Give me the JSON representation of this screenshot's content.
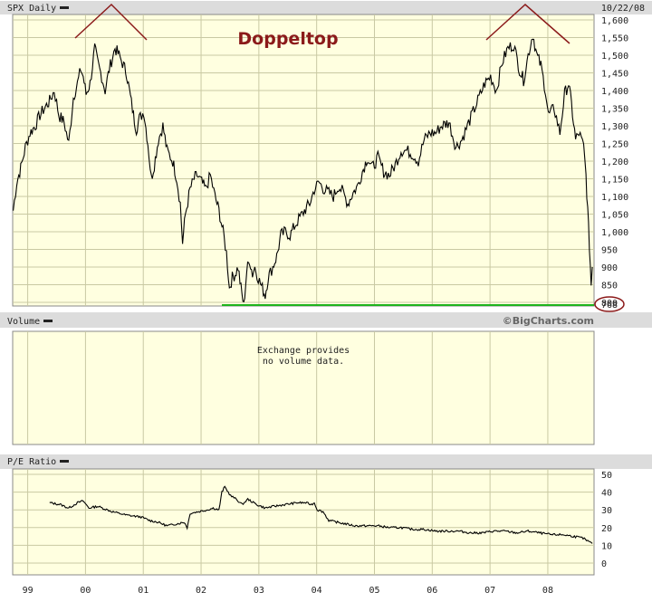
{
  "colors": {
    "background": "#ffffff",
    "panel_bg": "#ffffe0",
    "grid": "#c9c9a3",
    "bar": "#dcdcdc",
    "price_line": "#000000",
    "pe_line": "#000000",
    "annotation": "#8b1a1a",
    "support_line": "#1db31d"
  },
  "header": {
    "symbol_label": "SPX Daily",
    "date": "10/22/08"
  },
  "annotation": {
    "title": "Doppeltop",
    "marked_value": "768"
  },
  "watermark": "©BigCharts.com",
  "volume_panel": {
    "label": "Volume",
    "message_line1": "Exchange provides",
    "message_line2": "no volume data."
  },
  "pe_panel": {
    "label": "P/E Ratio"
  },
  "chart_data": [
    {
      "type": "line",
      "name": "price",
      "x_ticks": [
        "99",
        "00",
        "01",
        "02",
        "03",
        "04",
        "05",
        "06",
        "07",
        "08"
      ],
      "y_ticks": [
        "1,600",
        "1,550",
        "1,500",
        "1,450",
        "1,400",
        "1,350",
        "1,300",
        "1,250",
        "1,200",
        "1,150",
        "1,100",
        "1,050",
        "1,000",
        "950",
        "900",
        "850",
        "800"
      ],
      "ylim": [
        768,
        1600
      ],
      "support_level": 768,
      "series": [
        {
          "points": [
            [
              1998.79,
              1060
            ],
            [
              1998.85,
              1140
            ],
            [
              1998.92,
              1180
            ],
            [
              1999.0,
              1240
            ],
            [
              1999.08,
              1280
            ],
            [
              1999.17,
              1300
            ],
            [
              1999.25,
              1330
            ],
            [
              1999.33,
              1350
            ],
            [
              1999.42,
              1370
            ],
            [
              1999.5,
              1400
            ],
            [
              1999.58,
              1330
            ],
            [
              1999.67,
              1310
            ],
            [
              1999.75,
              1250
            ],
            [
              1999.83,
              1380
            ],
            [
              1999.9,
              1420
            ],
            [
              1999.96,
              1460
            ],
            [
              2000.0,
              1440
            ],
            [
              2000.05,
              1390
            ],
            [
              2000.12,
              1420
            ],
            [
              2000.2,
              1520
            ],
            [
              2000.25,
              1480
            ],
            [
              2000.32,
              1440
            ],
            [
              2000.38,
              1400
            ],
            [
              2000.45,
              1460
            ],
            [
              2000.55,
              1520
            ],
            [
              2000.62,
              1500
            ],
            [
              2000.7,
              1470
            ],
            [
              2000.75,
              1450
            ],
            [
              2000.8,
              1400
            ],
            [
              2000.87,
              1330
            ],
            [
              2000.92,
              1290
            ],
            [
              2000.97,
              1320
            ],
            [
              2001.05,
              1340
            ],
            [
              2001.12,
              1250
            ],
            [
              2001.18,
              1150
            ],
            [
              2001.23,
              1190
            ],
            [
              2001.3,
              1260
            ],
            [
              2001.38,
              1300
            ],
            [
              2001.45,
              1230
            ],
            [
              2001.55,
              1200
            ],
            [
              2001.62,
              1150
            ],
            [
              2001.68,
              1080
            ],
            [
              2001.72,
              970
            ],
            [
              2001.77,
              1050
            ],
            [
              2001.85,
              1120
            ],
            [
              2001.92,
              1150
            ],
            [
              2001.97,
              1160
            ],
            [
              2002.05,
              1140
            ],
            [
              2002.12,
              1120
            ],
            [
              2002.2,
              1160
            ],
            [
              2002.28,
              1100
            ],
            [
              2002.35,
              1060
            ],
            [
              2002.42,
              1000
            ],
            [
              2002.48,
              940
            ],
            [
              2002.53,
              840
            ],
            [
              2002.58,
              870
            ],
            [
              2002.63,
              880
            ],
            [
              2002.68,
              900
            ],
            [
              2002.73,
              840
            ],
            [
              2002.78,
              790
            ],
            [
              2002.83,
              890
            ],
            [
              2002.88,
              920
            ],
            [
              2002.93,
              880
            ],
            [
              2002.97,
              900
            ],
            [
              2003.05,
              860
            ],
            [
              2003.1,
              840
            ],
            [
              2003.15,
              820
            ],
            [
              2003.2,
              870
            ],
            [
              2003.28,
              900
            ],
            [
              2003.35,
              930
            ],
            [
              2003.42,
              990
            ],
            [
              2003.5,
              1000
            ],
            [
              2003.58,
              990
            ],
            [
              2003.67,
              1020
            ],
            [
              2003.75,
              1040
            ],
            [
              2003.83,
              1060
            ],
            [
              2003.92,
              1080
            ],
            [
              2004.0,
              1120
            ],
            [
              2004.08,
              1140
            ],
            [
              2004.17,
              1120
            ],
            [
              2004.25,
              1110
            ],
            [
              2004.33,
              1100
            ],
            [
              2004.42,
              1130
            ],
            [
              2004.5,
              1110
            ],
            [
              2004.58,
              1080
            ],
            [
              2004.67,
              1110
            ],
            [
              2004.75,
              1130
            ],
            [
              2004.83,
              1170
            ],
            [
              2004.92,
              1210
            ],
            [
              2005.0,
              1180
            ],
            [
              2005.1,
              1210
            ],
            [
              2005.2,
              1170
            ],
            [
              2005.3,
              1160
            ],
            [
              2005.4,
              1190
            ],
            [
              2005.5,
              1230
            ],
            [
              2005.6,
              1230
            ],
            [
              2005.7,
              1220
            ],
            [
              2005.8,
              1200
            ],
            [
              2005.9,
              1260
            ],
            [
              2006.0,
              1280
            ],
            [
              2006.1,
              1280
            ],
            [
              2006.2,
              1300
            ],
            [
              2006.33,
              1310
            ],
            [
              2006.45,
              1240
            ],
            [
              2006.55,
              1260
            ],
            [
              2006.65,
              1300
            ],
            [
              2006.75,
              1340
            ],
            [
              2006.85,
              1380
            ],
            [
              2006.95,
              1420
            ],
            [
              2007.05,
              1440
            ],
            [
              2007.15,
              1400
            ],
            [
              2007.25,
              1480
            ],
            [
              2007.35,
              1520
            ],
            [
              2007.45,
              1530
            ],
            [
              2007.55,
              1460
            ],
            [
              2007.62,
              1430
            ],
            [
              2007.7,
              1500
            ],
            [
              2007.78,
              1560
            ],
            [
              2007.85,
              1500
            ],
            [
              2007.92,
              1470
            ],
            [
              2008.0,
              1400
            ],
            [
              2008.05,
              1330
            ],
            [
              2008.15,
              1350
            ],
            [
              2008.25,
              1280
            ],
            [
              2008.33,
              1390
            ],
            [
              2008.4,
              1420
            ],
            [
              2008.45,
              1360
            ],
            [
              2008.52,
              1260
            ],
            [
              2008.58,
              1280
            ],
            [
              2008.66,
              1240
            ],
            [
              2008.7,
              1160
            ],
            [
              2008.73,
              1060
            ],
            [
              2008.76,
              960
            ],
            [
              2008.79,
              850
            ],
            [
              2008.81,
              900
            ]
          ]
        }
      ]
    },
    {
      "type": "line",
      "name": "pe_ratio",
      "x_ticks": [
        "99",
        "00",
        "01",
        "02",
        "03",
        "04",
        "05",
        "06",
        "07",
        "08"
      ],
      "y_ticks": [
        "50",
        "40",
        "30",
        "20",
        "10",
        "0"
      ],
      "ylim": [
        0,
        50
      ],
      "series": [
        {
          "points": [
            [
              1999.42,
              34
            ],
            [
              1999.6,
              33
            ],
            [
              1999.75,
              31
            ],
            [
              1999.9,
              34
            ],
            [
              2000.0,
              35
            ],
            [
              2000.1,
              31
            ],
            [
              2000.25,
              32
            ],
            [
              2000.5,
              29
            ],
            [
              2000.75,
              27
            ],
            [
              2001.0,
              26
            ],
            [
              2001.15,
              24
            ],
            [
              2001.3,
              23
            ],
            [
              2001.45,
              21
            ],
            [
              2001.6,
              22
            ],
            [
              2001.75,
              23
            ],
            [
              2001.8,
              20
            ],
            [
              2001.85,
              28
            ],
            [
              2002.0,
              29
            ],
            [
              2002.15,
              30
            ],
            [
              2002.25,
              31
            ],
            [
              2002.35,
              30
            ],
            [
              2002.4,
              40
            ],
            [
              2002.45,
              43
            ],
            [
              2002.55,
              38
            ],
            [
              2002.65,
              36
            ],
            [
              2002.75,
              33
            ],
            [
              2002.85,
              36
            ],
            [
              2003.0,
              33
            ],
            [
              2003.15,
              31
            ],
            [
              2003.3,
              32
            ],
            [
              2003.5,
              33
            ],
            [
              2003.7,
              34
            ],
            [
              2003.85,
              34
            ],
            [
              2003.95,
              33
            ],
            [
              2004.0,
              34
            ],
            [
              2004.05,
              30
            ],
            [
              2004.15,
              29
            ],
            [
              2004.25,
              24
            ],
            [
              2004.4,
              23
            ],
            [
              2004.55,
              22
            ],
            [
              2004.7,
              21
            ],
            [
              2004.9,
              21
            ],
            [
              2005.1,
              21
            ],
            [
              2005.3,
              20
            ],
            [
              2005.5,
              20
            ],
            [
              2005.7,
              19
            ],
            [
              2005.9,
              19
            ],
            [
              2006.1,
              18
            ],
            [
              2006.3,
              18
            ],
            [
              2006.5,
              18
            ],
            [
              2006.7,
              17
            ],
            [
              2006.9,
              17
            ],
            [
              2007.1,
              18
            ],
            [
              2007.3,
              18
            ],
            [
              2007.5,
              17
            ],
            [
              2007.7,
              18
            ],
            [
              2007.9,
              17
            ],
            [
              2008.1,
              16
            ],
            [
              2008.3,
              16
            ],
            [
              2008.5,
              15
            ],
            [
              2008.65,
              14
            ],
            [
              2008.75,
              12
            ],
            [
              2008.81,
              11
            ]
          ]
        }
      ]
    }
  ]
}
